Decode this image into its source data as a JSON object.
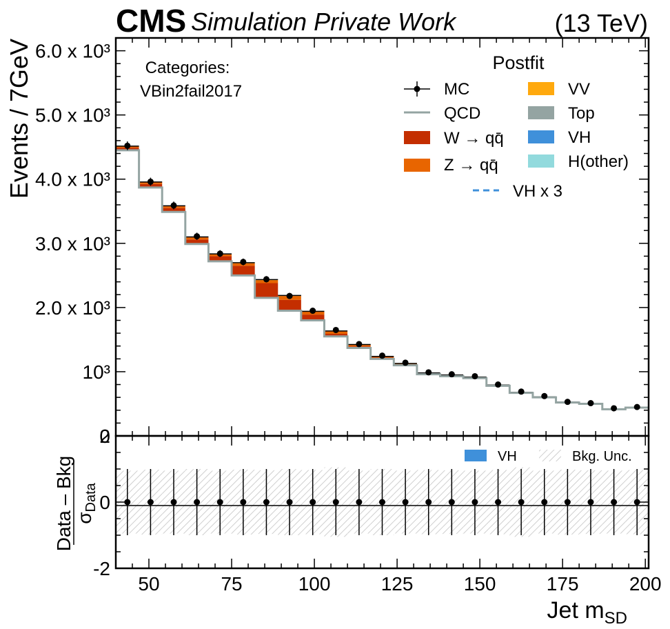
{
  "header": {
    "experiment": "CMS",
    "subtitle": "Simulation Private Work",
    "energy": "(13 TeV)"
  },
  "colors": {
    "w": "#c42e00",
    "z": "#e86500",
    "vv": "#ffa90e",
    "qcd": "#94a4a2",
    "top": "#94a4a2",
    "vh": "#3f90da",
    "hother": "#92dadd",
    "unc": "#cfcfcf"
  },
  "category": {
    "title": "Categories:",
    "name": "VBin2fail2017"
  },
  "legend": {
    "title": "Postfit",
    "entries": [
      {
        "key": "mc",
        "label": "MC"
      },
      {
        "key": "qcd",
        "label": "QCD"
      },
      {
        "key": "w",
        "label": "W → qq̄"
      },
      {
        "key": "z",
        "label": "Z → qq̄"
      },
      {
        "key": "vv",
        "label": "VV"
      },
      {
        "key": "top",
        "label": "Top"
      },
      {
        "key": "vh",
        "label": "VH"
      },
      {
        "key": "hother",
        "label": "H(other)"
      },
      {
        "key": "vh3",
        "label": "VH x 3"
      }
    ]
  },
  "ratio_legend": {
    "vh": "VH",
    "unc": "Bkg. Unc."
  },
  "chart_data": {
    "type": "bar",
    "ylabel": "Events / 7GeV",
    "xlabel": "Jet mSD",
    "xlabel_main": "Jet m",
    "xlabel_sub": "SD",
    "xlim": [
      40,
      201
    ],
    "ylim": [
      0,
      6200
    ],
    "x_ticks": [
      "50",
      "75",
      "100",
      "125",
      "150",
      "175",
      "200"
    ],
    "y_tick_labels": [
      "0",
      "10³",
      "2.0 x 10³",
      "3.0 x 10³",
      "4.0 x 10³",
      "5.0 x 10³",
      "6.0 x 10³"
    ],
    "bin_edges": [
      40,
      47,
      54,
      61,
      68,
      75,
      82,
      89,
      96,
      103,
      110,
      117,
      124,
      131,
      138,
      145,
      152,
      159,
      166,
      173,
      180,
      187,
      194,
      201
    ],
    "series": [
      {
        "name": "QCD",
        "values": [
          4450,
          3870,
          3490,
          2990,
          2720,
          2500,
          2150,
          1950,
          1800,
          1550,
          1370,
          1200,
          1100,
          960,
          930,
          900,
          780,
          670,
          600,
          520,
          500,
          415,
          440
        ]
      },
      {
        "name": "W → qq̄",
        "values": [
          40,
          55,
          60,
          70,
          80,
          150,
          230,
          170,
          90,
          40,
          25,
          20,
          15,
          10,
          8,
          8,
          5,
          5,
          4,
          3,
          3,
          2,
          2
        ]
      },
      {
        "name": "Z → qq̄",
        "values": [
          20,
          25,
          30,
          35,
          30,
          40,
          45,
          60,
          45,
          40,
          25,
          15,
          10,
          8,
          8,
          6,
          5,
          4,
          3,
          3,
          2,
          2,
          2
        ]
      },
      {
        "name": "VV",
        "values": [
          5,
          5,
          5,
          5,
          5,
          8,
          10,
          8,
          6,
          5,
          4,
          3,
          3,
          2,
          2,
          2,
          2,
          1,
          1,
          1,
          1,
          1,
          1
        ]
      }
    ],
    "mc_values": [
      4520,
      3960,
      3590,
      3110,
      2840,
      2710,
      2440,
      2180,
      1950,
      1650,
      1430,
      1250,
      1140,
      990,
      960,
      930,
      800,
      690,
      620,
      530,
      510,
      430,
      450
    ],
    "ratio": {
      "ylabel_numerator": "Data – Bkg",
      "ylabel_denominator": "σ",
      "ylabel_denominator_sub": "Data",
      "ylim": [
        -2,
        2
      ],
      "y_ticks": [
        "2",
        "0",
        "-2"
      ],
      "values": [
        0,
        0,
        0,
        0,
        0,
        0,
        0,
        0,
        0,
        0,
        0,
        0,
        0,
        0,
        0,
        0,
        0,
        0,
        0,
        0,
        0,
        0,
        0
      ],
      "errors": [
        1,
        1,
        1,
        1,
        1,
        1,
        1,
        1,
        1,
        1,
        1,
        1,
        1,
        1,
        1,
        1,
        1,
        1,
        1,
        1,
        1,
        1,
        1
      ],
      "bkg_unc": [
        0.95,
        0.98,
        0.95,
        1.0,
        0.95,
        0.98,
        0.96,
        1.0,
        0.97,
        1.05,
        0.95,
        1.0,
        0.95,
        0.97,
        0.96,
        0.95,
        0.97,
        1.05,
        0.95,
        0.98,
        0.96,
        0.95,
        0.97
      ]
    }
  }
}
